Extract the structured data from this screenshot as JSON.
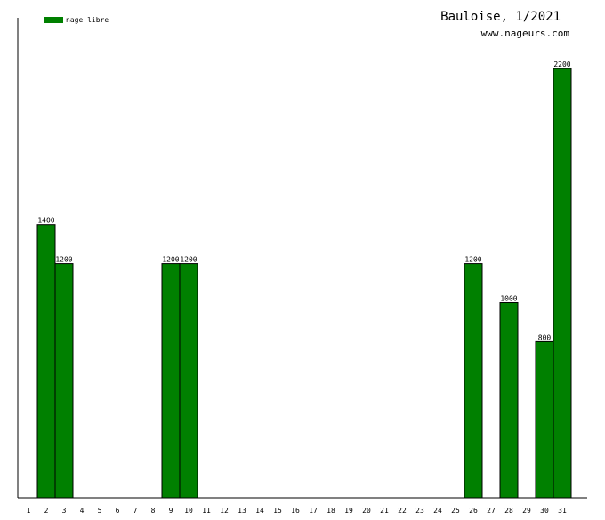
{
  "chart_data": {
    "type": "bar",
    "title": "Bauloise, 1/2021",
    "subtitle": "www.nageurs.com",
    "xlabel": "",
    "ylabel": "",
    "categories": [
      "1",
      "2",
      "3",
      "4",
      "5",
      "6",
      "7",
      "8",
      "9",
      "10",
      "11",
      "12",
      "13",
      "14",
      "15",
      "16",
      "17",
      "18",
      "19",
      "20",
      "21",
      "22",
      "23",
      "24",
      "25",
      "26",
      "27",
      "28",
      "29",
      "30",
      "31"
    ],
    "series": [
      {
        "name": "nage libre",
        "color": "#008000",
        "values": [
          0,
          1400,
          1200,
          0,
          0,
          0,
          0,
          0,
          1200,
          1200,
          0,
          0,
          0,
          0,
          0,
          0,
          0,
          0,
          0,
          0,
          0,
          0,
          0,
          0,
          0,
          1200,
          0,
          1000,
          0,
          800,
          2200
        ]
      }
    ],
    "ylim": [
      0,
      2460
    ],
    "grid": false,
    "legend_position": "top-left"
  }
}
